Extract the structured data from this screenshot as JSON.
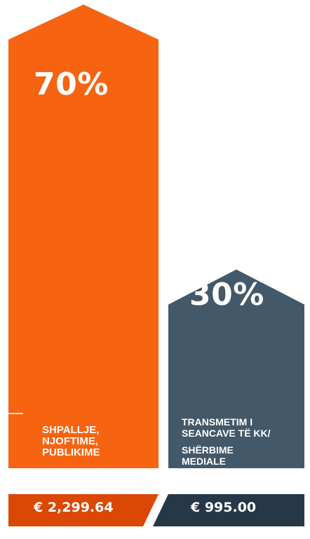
{
  "chart_data": {
    "type": "bar",
    "categories": [
      "SHPALLJE, NJOFTIME, PUBLIKIME",
      "TRANSMETIM I SEANCAVE TË KK/ SHËRBIME MEDIALE"
    ],
    "values": [
      70,
      30
    ],
    "value_labels": [
      "70%",
      "30%"
    ],
    "amounts": [
      "€ 2,299.64",
      "€ 995.00"
    ],
    "ylim": [
      0,
      100
    ],
    "colors": {
      "bar1": "#f76411",
      "bar1_base": "#db4806",
      "bar2": "#435868",
      "bar2_base": "#263847"
    }
  },
  "labels": {
    "bar1_pct": "70%",
    "bar2_pct": "30%",
    "bar1_cat_lines": [
      "SHPALLJE,",
      "NJOFTIME,",
      "PUBLIKIME"
    ],
    "bar2_cat_lines_a": [
      "TRANSMETIM I",
      "SEANCAVE TË KK/"
    ],
    "bar2_cat_lines_b": [
      "SHËRBIME",
      "MEDIALE"
    ],
    "bar1_amount": "€ 2,299.64",
    "bar2_amount": "€ 995.00"
  }
}
